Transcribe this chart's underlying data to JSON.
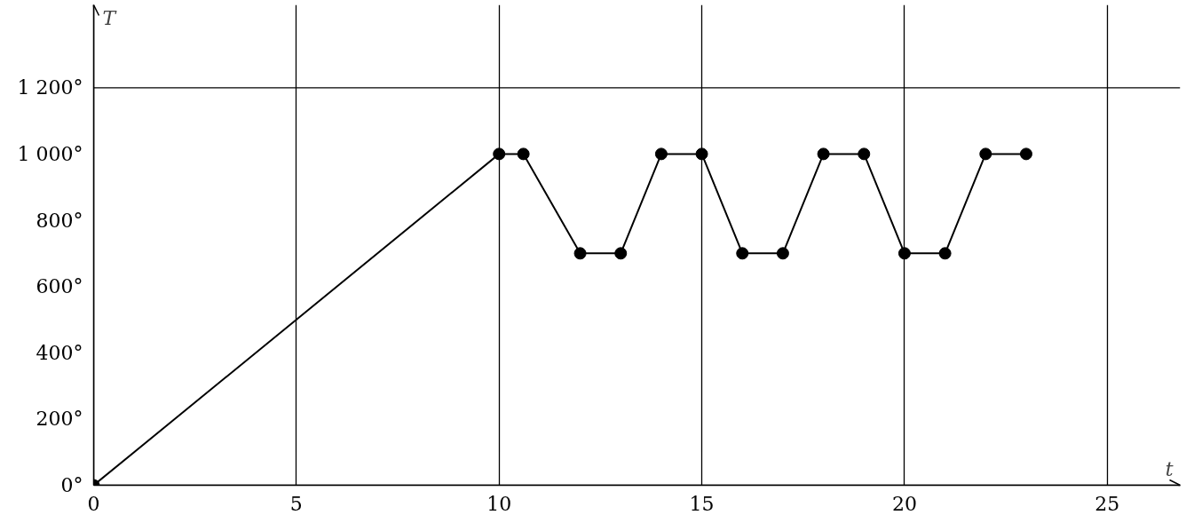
{
  "chart_data": {
    "type": "line",
    "xlabel": "t",
    "ylabel": "T",
    "x": [
      0,
      10,
      10.6,
      12,
      13,
      14,
      15,
      16,
      17,
      18,
      19,
      20,
      21,
      22,
      23
    ],
    "series": [
      {
        "color": "#000000",
        "values": [
          0,
          1000,
          1000,
          700,
          700,
          1000,
          1000,
          700,
          700,
          1000,
          1000,
          700,
          700,
          1000,
          1000
        ]
      }
    ],
    "xlim": [
      0,
      26.8
    ],
    "ylim": [
      0,
      1450
    ],
    "xticks": [
      0,
      5,
      10,
      15,
      20,
      25
    ],
    "yticks": [
      {
        "value": 0,
        "label": "0°"
      },
      {
        "value": 200,
        "label": "200°"
      },
      {
        "value": 400,
        "label": "400°"
      },
      {
        "value": 600,
        "label": "600°"
      },
      {
        "value": 800,
        "label": "800°"
      },
      {
        "value": 1000,
        "label": "1 000°"
      },
      {
        "value": 1200,
        "label": "1 200°"
      }
    ],
    "grid": "x",
    "marker": "circle",
    "line_style": "solid",
    "ref_lines": [
      {
        "axis": "y",
        "value": 1200,
        "color": "#000000"
      }
    ]
  }
}
